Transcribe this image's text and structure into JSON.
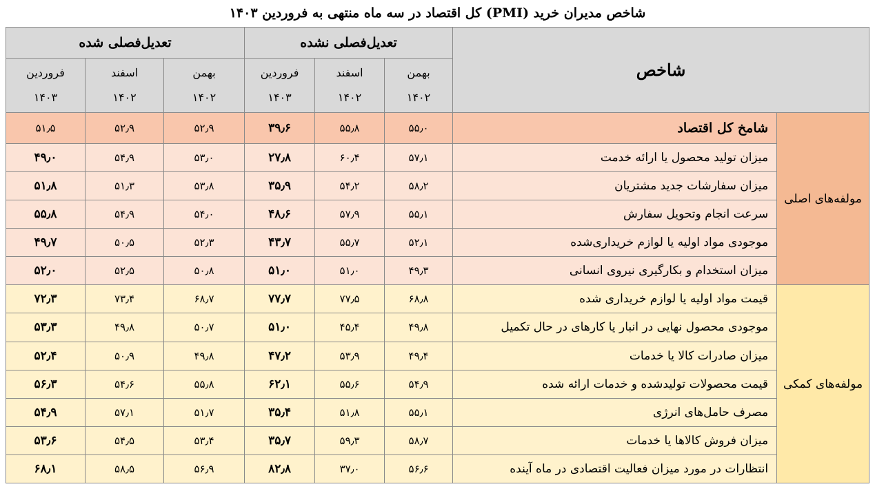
{
  "title": "شاخص مدیران خرید (PMI) کل اقتصاد در سه ماه منتهی به فروردین ۱۴۰۳",
  "header": {
    "indicator": "شاخص",
    "not_adjusted": "تعدیل‌فصلی نشده",
    "adjusted": "تعدیل‌فصلی شده",
    "months": [
      {
        "name": "بهمن",
        "year": "۱۴۰۲"
      },
      {
        "name": "اسفند",
        "year": "۱۴۰۲"
      },
      {
        "name": "فروردین",
        "year": "۱۴۰۳"
      }
    ]
  },
  "groups": {
    "main": "مولفه‌های اصلی",
    "aux": "مولفه‌های کمکی"
  },
  "rows": [
    {
      "label": "شامخ  کل اقتصاد",
      "na": [
        "۵۵٫۰",
        "۵۵٫۸",
        "۳۹٫۶"
      ],
      "sa": [
        "۵۲٫۹",
        "۵۲٫۹",
        "۵۱٫۵"
      ]
    },
    {
      "label": "میزان تولید محصول یا ارائه خدمت",
      "na": [
        "۵۷٫۱",
        "۶۰٫۴",
        "۲۷٫۸"
      ],
      "sa": [
        "۵۳٫۰",
        "۵۴٫۹",
        "۴۹٫۰"
      ]
    },
    {
      "label": "میزان سفارشات جدید مشتریان",
      "na": [
        "۵۸٫۲",
        "۵۴٫۲",
        "۳۵٫۹"
      ],
      "sa": [
        "۵۳٫۸",
        "۵۱٫۳",
        "۵۱٫۸"
      ]
    },
    {
      "label": "سرعت انجام وتحویل سفارش",
      "na": [
        "۵۵٫۱",
        "۵۷٫۹",
        "۴۸٫۶"
      ],
      "sa": [
        "۵۴٫۰",
        "۵۴٫۹",
        "۵۵٫۸"
      ]
    },
    {
      "label": "موجودی مواد اولیه یا لوازم خریداری‌شده",
      "na": [
        "۵۲٫۱",
        "۵۵٫۷",
        "۴۳٫۷"
      ],
      "sa": [
        "۵۲٫۳",
        "۵۰٫۵",
        "۴۹٫۷"
      ]
    },
    {
      "label": "میزان استخدام و بکارگیری نیروی انسانی",
      "na": [
        "۴۹٫۳",
        "۵۱٫۰",
        "۵۱٫۰"
      ],
      "sa": [
        "۵۰٫۸",
        "۵۲٫۵",
        "۵۲٫۰"
      ]
    },
    {
      "label": "قیمت مواد اولیه یا لوازم خریداری شده",
      "na": [
        "۶۸٫۸",
        "۷۷٫۵",
        "۷۷٫۷"
      ],
      "sa": [
        "۶۸٫۷",
        "۷۳٫۴",
        "۷۲٫۳"
      ]
    },
    {
      "label": "موجودی محصول نهایی در انبار یا کارهای در حال تکمیل",
      "na": [
        "۴۹٫۸",
        "۴۵٫۴",
        "۵۱٫۰"
      ],
      "sa": [
        "۵۰٫۷",
        "۴۹٫۸",
        "۵۳٫۳"
      ]
    },
    {
      "label": "میزان صادرات کالا یا خدمات",
      "na": [
        "۴۹٫۴",
        "۵۳٫۹",
        "۴۷٫۲"
      ],
      "sa": [
        "۴۹٫۸",
        "۵۰٫۹",
        "۵۲٫۴"
      ]
    },
    {
      "label": "قیمت محصولات تولیدشده و خدمات ارائه شده",
      "na": [
        "۵۴٫۹",
        "۵۵٫۶",
        "۶۲٫۱"
      ],
      "sa": [
        "۵۵٫۸",
        "۵۴٫۶",
        "۵۶٫۳"
      ]
    },
    {
      "label": "مصرف حامل‌های انرژی",
      "na": [
        "۵۵٫۱",
        "۵۱٫۸",
        "۳۵٫۴"
      ],
      "sa": [
        "۵۱٫۷",
        "۵۷٫۱",
        "۵۴٫۹"
      ]
    },
    {
      "label": "میزان فروش کالاها یا خدمات",
      "na": [
        "۵۸٫۷",
        "۵۹٫۳",
        "۳۵٫۷"
      ],
      "sa": [
        "۵۳٫۴",
        "۵۴٫۵",
        "۵۳٫۶"
      ]
    },
    {
      "label": "انتظارات در مورد میزان فعالیت اقتصادی در ماه آینده",
      "na": [
        "۵۶٫۶",
        "۳۷٫۰",
        "۸۲٫۸"
      ],
      "sa": [
        "۵۶٫۹",
        "۵۸٫۵",
        "۶۸٫۱"
      ]
    }
  ],
  "colors": {
    "header_bg": "#d9d9d9",
    "total_row_bg": "#f9c6ac",
    "main_rows_bg": "#fce3d6",
    "main_group_bg": "#f4b993",
    "aux_rows_bg": "#fff2cc",
    "aux_group_bg": "#ffe9a8"
  }
}
